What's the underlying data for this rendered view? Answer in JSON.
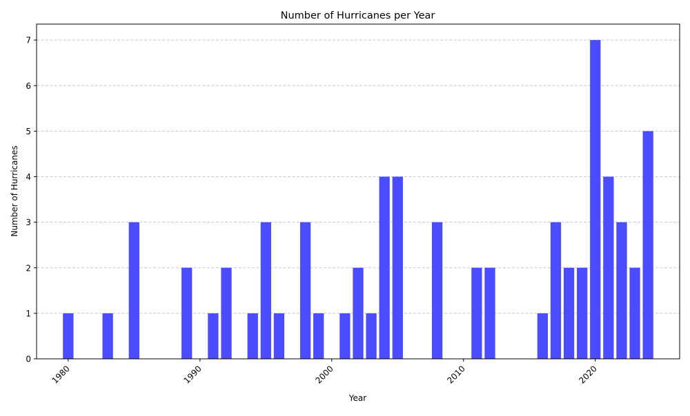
{
  "chart_data": {
    "type": "bar",
    "title": "Number of Hurricanes per Year",
    "xlabel": "Year",
    "ylabel": "Number of Hurricanes",
    "x": [
      1980,
      1983,
      1985,
      1989,
      1991,
      1992,
      1994,
      1995,
      1996,
      1998,
      1999,
      2001,
      2002,
      2003,
      2004,
      2005,
      2008,
      2011,
      2012,
      2016,
      2017,
      2018,
      2019,
      2020,
      2021,
      2022,
      2023,
      2024
    ],
    "values": [
      1,
      1,
      3,
      2,
      1,
      2,
      1,
      3,
      1,
      3,
      1,
      1,
      2,
      1,
      4,
      4,
      3,
      2,
      2,
      1,
      3,
      2,
      2,
      7,
      4,
      3,
      2,
      5
    ],
    "xlim": [
      1977.6,
      2026.4
    ],
    "ylim": [
      0,
      7.35
    ],
    "xticks": [
      1980,
      1990,
      2000,
      2010,
      2020
    ],
    "yticks": [
      0,
      1,
      2,
      3,
      4,
      5,
      6,
      7
    ],
    "grid": "y-dashed",
    "bar_color": "#4b4bff"
  }
}
